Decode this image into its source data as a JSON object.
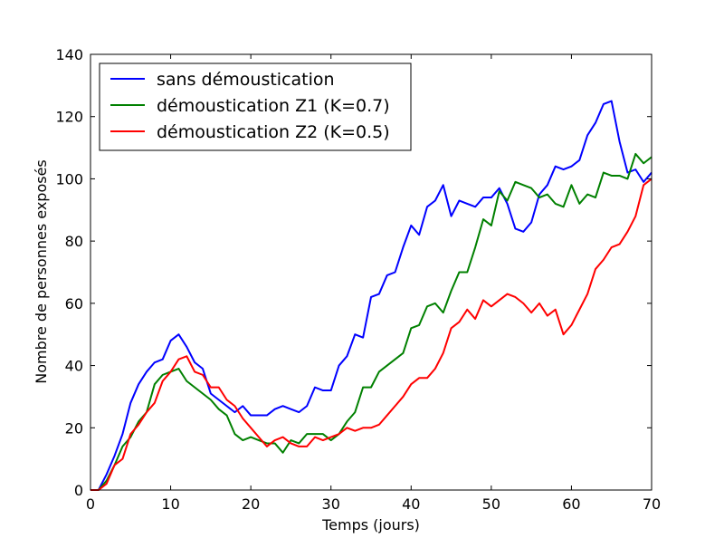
{
  "chart_data": {
    "type": "line",
    "title": "",
    "xlabel": "Temps (jours)",
    "ylabel": "Nombre de personnes exposés",
    "xlim": [
      0,
      70
    ],
    "ylim": [
      0,
      140
    ],
    "xticks": [
      0,
      10,
      20,
      30,
      40,
      50,
      60,
      70
    ],
    "yticks": [
      0,
      20,
      40,
      60,
      80,
      100,
      120,
      140
    ],
    "grid": false,
    "legend_position": "top-left",
    "x": [
      0,
      1,
      2,
      3,
      4,
      5,
      6,
      7,
      8,
      9,
      10,
      11,
      12,
      13,
      14,
      15,
      16,
      17,
      18,
      19,
      20,
      21,
      22,
      23,
      24,
      25,
      26,
      27,
      28,
      29,
      30,
      31,
      32,
      33,
      34,
      35,
      36,
      37,
      38,
      39,
      40,
      41,
      42,
      43,
      44,
      45,
      46,
      47,
      48,
      49,
      50,
      51,
      52,
      53,
      54,
      55,
      56,
      57,
      58,
      59,
      60,
      61,
      62,
      63,
      64,
      65,
      66,
      67,
      68,
      69,
      70
    ],
    "series": [
      {
        "name": "sans démoustication",
        "color": "#0000ff",
        "values": [
          0,
          0,
          5,
          11,
          18,
          28,
          34,
          38,
          41,
          42,
          48,
          50,
          46,
          41,
          39,
          31,
          29,
          27,
          25,
          27,
          24,
          24,
          24,
          26,
          27,
          26,
          25,
          27,
          33,
          32,
          32,
          40,
          43,
          50,
          49,
          62,
          63,
          69,
          70,
          78,
          85,
          82,
          91,
          93,
          98,
          88,
          93,
          92,
          91,
          94,
          94,
          97,
          92,
          84,
          83,
          86,
          95,
          98,
          104,
          103,
          104,
          106,
          114,
          118,
          124,
          125,
          112,
          102,
          103,
          99,
          102
        ]
      },
      {
        "name": "démoustication Z1 (K=0.7)",
        "color": "#008000",
        "values": [
          0,
          0,
          3,
          8,
          14,
          17,
          22,
          25,
          34,
          37,
          38,
          39,
          35,
          33,
          31,
          29,
          26,
          24,
          18,
          16,
          17,
          16,
          15,
          15,
          12,
          16,
          15,
          18,
          18,
          18,
          16,
          18,
          22,
          25,
          33,
          33,
          38,
          40,
          42,
          44,
          52,
          53,
          59,
          60,
          57,
          64,
          70,
          70,
          78,
          87,
          85,
          96,
          93,
          99,
          98,
          97,
          94,
          95,
          92,
          91,
          98,
          92,
          95,
          94,
          102,
          101,
          101,
          100,
          108,
          105,
          107
        ]
      },
      {
        "name": "démoustication Z2 (K=0.5)",
        "color": "#ff0000",
        "values": [
          0,
          0,
          2,
          8,
          10,
          18,
          21,
          25,
          28,
          35,
          38,
          42,
          43,
          38,
          37,
          33,
          33,
          29,
          27,
          23,
          20,
          17,
          14,
          16,
          17,
          15,
          14,
          14,
          17,
          16,
          17,
          18,
          20,
          19,
          20,
          20,
          21,
          24,
          27,
          30,
          34,
          36,
          36,
          39,
          44,
          52,
          54,
          58,
          55,
          61,
          59,
          61,
          63,
          62,
          60,
          57,
          60,
          56,
          58,
          50,
          53,
          58,
          63,
          71,
          74,
          78,
          79,
          83,
          88,
          98,
          100
        ]
      }
    ]
  }
}
